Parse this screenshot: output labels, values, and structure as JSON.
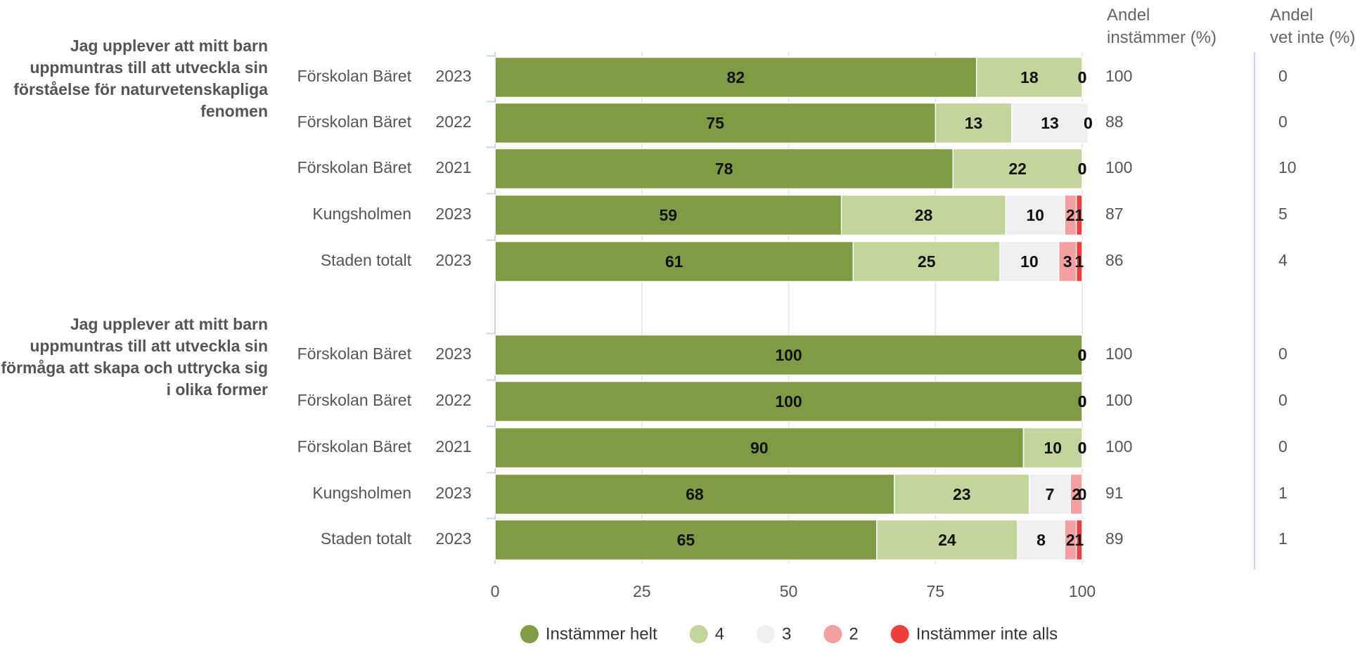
{
  "chart_data": {
    "type": "bar",
    "orientation": "horizontal",
    "stacked": true,
    "instammer_header": "Andel\ninstämmer (%)",
    "vet_inte_header": "Andel\nvet inte (%)",
    "legend": [
      {
        "name": "Instämmer helt",
        "color": "#7f9c45"
      },
      {
        "name": "4",
        "color": "#c2d69b"
      },
      {
        "name": "3",
        "color": "#efefef"
      },
      {
        "name": "2",
        "color": "#f4a0a0"
      },
      {
        "name": "Instämmer inte alls",
        "color": "#ef3e3e"
      }
    ],
    "xlim": [
      0,
      100
    ],
    "xticks": [
      0,
      25,
      50,
      75,
      100
    ],
    "grid": true,
    "groups": [
      {
        "label": "Jag upplever att mitt barn uppmuntras till att utveckla sin förståelse för naturvetenskapliga fenomen",
        "categories": [
          "Förskolan Bäret",
          "Förskolan Bäret",
          "Förskolan Bäret",
          "Kungsholmen",
          "Staden totalt"
        ],
        "years": [
          "2023",
          "2022",
          "2021",
          "2023",
          "2023"
        ],
        "values": [
          [
            82,
            18,
            0,
            0,
            0
          ],
          [
            75,
            13,
            13,
            0,
            0
          ],
          [
            78,
            22,
            0,
            0,
            0
          ],
          [
            59,
            28,
            10,
            2,
            1
          ],
          [
            61,
            25,
            10,
            3,
            1
          ]
        ],
        "andel_instammer": [
          100,
          88,
          100,
          87,
          86
        ],
        "andel_vet_inte": [
          0,
          0,
          10,
          5,
          4
        ]
      },
      {
        "label": "Jag upplever att mitt barn uppmuntras till att utveckla sin förmåga att skapa och uttrycka sig i olika former",
        "categories": [
          "Förskolan Bäret",
          "Förskolan Bäret",
          "Förskolan Bäret",
          "Kungsholmen",
          "Staden totalt"
        ],
        "years": [
          "2023",
          "2022",
          "2021",
          "2023",
          "2023"
        ],
        "values": [
          [
            100,
            0,
            0,
            0,
            0
          ],
          [
            100,
            0,
            0,
            0,
            0
          ],
          [
            90,
            10,
            0,
            0,
            0
          ],
          [
            68,
            23,
            7,
            2,
            0
          ],
          [
            65,
            24,
            8,
            2,
            1
          ]
        ],
        "andel_instammer": [
          100,
          100,
          100,
          91,
          89
        ],
        "andel_vet_inte": [
          0,
          0,
          0,
          1,
          1
        ]
      }
    ]
  }
}
